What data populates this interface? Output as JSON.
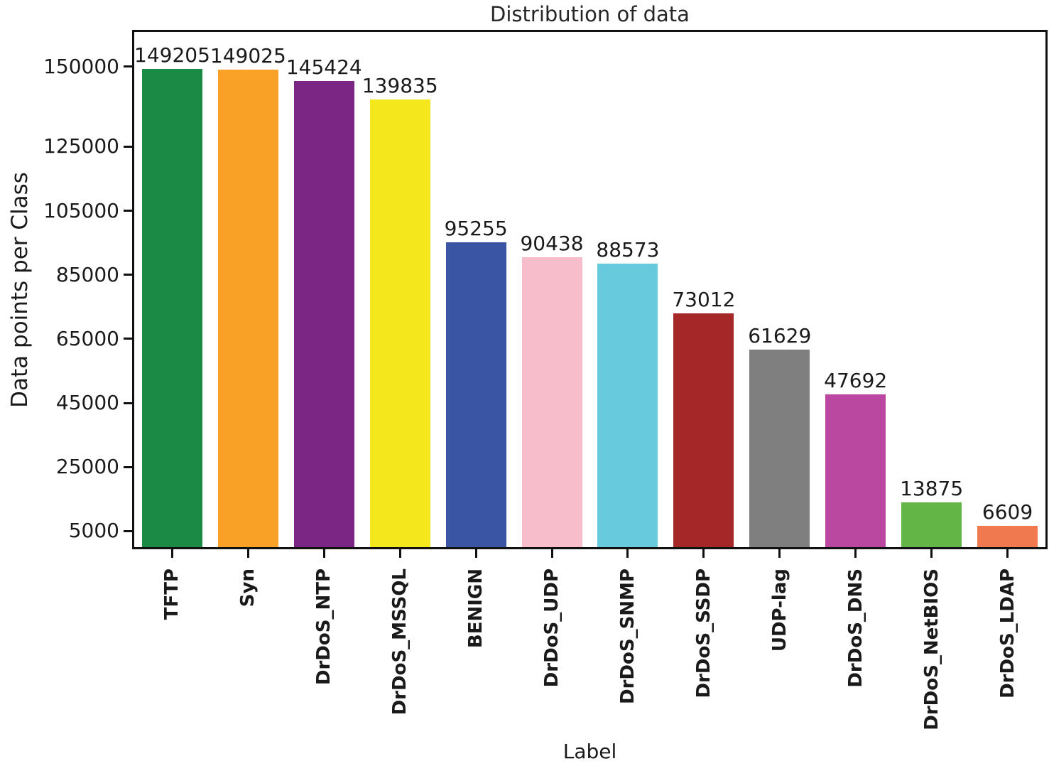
{
  "chart_data": {
    "type": "bar",
    "title": "Distribution of data",
    "xlabel": "Label",
    "ylabel": "Data points per Class",
    "categories": [
      "TFTP",
      "Syn",
      "DrDoS_NTP",
      "DrDoS_MSSQL",
      "BENIGN",
      "DrDoS_UDP",
      "DrDoS_SNMP",
      "DrDoS_SSDP",
      "UDP-lag",
      "DrDoS_DNS",
      "DrDoS_NetBIOS",
      "DrDoS_LDAP"
    ],
    "values": [
      149205,
      149025,
      145424,
      139835,
      95255,
      90438,
      88573,
      73012,
      61629,
      47692,
      13875,
      6609
    ],
    "value_labels": [
      "149205",
      "149025",
      "145424",
      "139835",
      "95255",
      "90438",
      "88573",
      "73012",
      "61629",
      "47692",
      "13875",
      "6609"
    ],
    "bar_colors": [
      "#1b8a44",
      "#f9a127",
      "#7b2684",
      "#f4e81c",
      "#3b55a5",
      "#f8bdcb",
      "#68cadd",
      "#a52728",
      "#7f7f7f",
      "#ba47a0",
      "#63b545",
      "#f0794f"
    ],
    "yticks": [
      5000,
      25000,
      45000,
      65000,
      85000,
      105000,
      125000,
      150000
    ],
    "ylim": [
      0,
      160800
    ],
    "grid": false,
    "legend_position": "none",
    "value_labels_shown": true,
    "text_color": "#1a1a1a",
    "spine_color": "#111111",
    "background_color": "#ffffff"
  }
}
